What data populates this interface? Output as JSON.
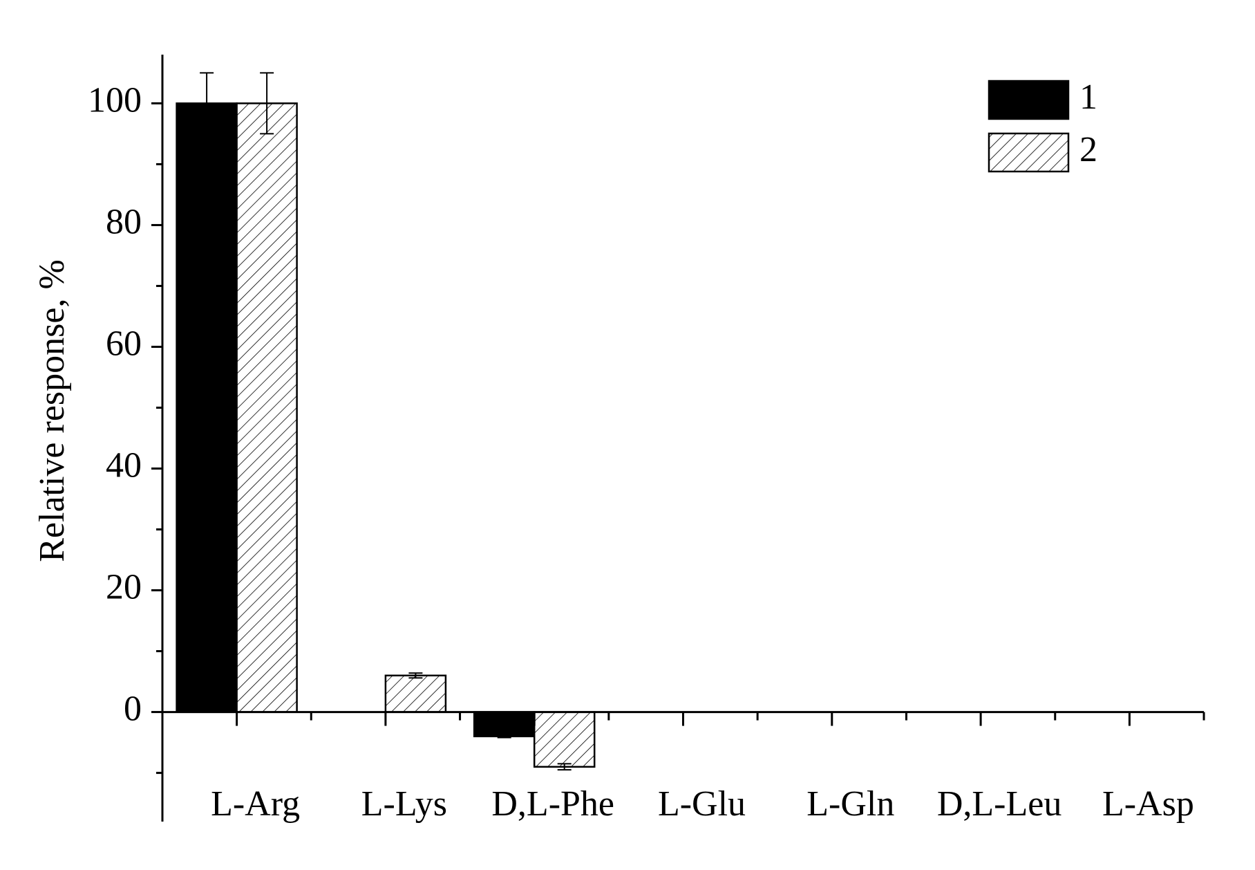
{
  "chart_data": {
    "type": "bar",
    "y_label": "Relative response, %",
    "categories": [
      "L-Arg",
      "L-Lys",
      "D,L-Phe",
      "L-Glu",
      "L-Gln",
      "D,L-Leu",
      "L-Asp"
    ],
    "series": [
      {
        "name": "1",
        "color": "#000000",
        "fill": "solid",
        "values": [
          100,
          0,
          -4,
          0,
          0,
          0,
          0
        ],
        "errors": [
          5,
          null,
          0.2,
          null,
          null,
          null,
          null
        ]
      },
      {
        "name": "2",
        "color": "#000000",
        "fill": "hatch",
        "values": [
          100,
          6,
          -9,
          0,
          0,
          0,
          0
        ],
        "errors": [
          5,
          0.4,
          0.5,
          null,
          null,
          null,
          null
        ]
      }
    ],
    "ylim": [
      -18,
      108
    ],
    "yticks": [
      0,
      20,
      40,
      60,
      80,
      100
    ],
    "grid": false,
    "legend": "upper right"
  }
}
